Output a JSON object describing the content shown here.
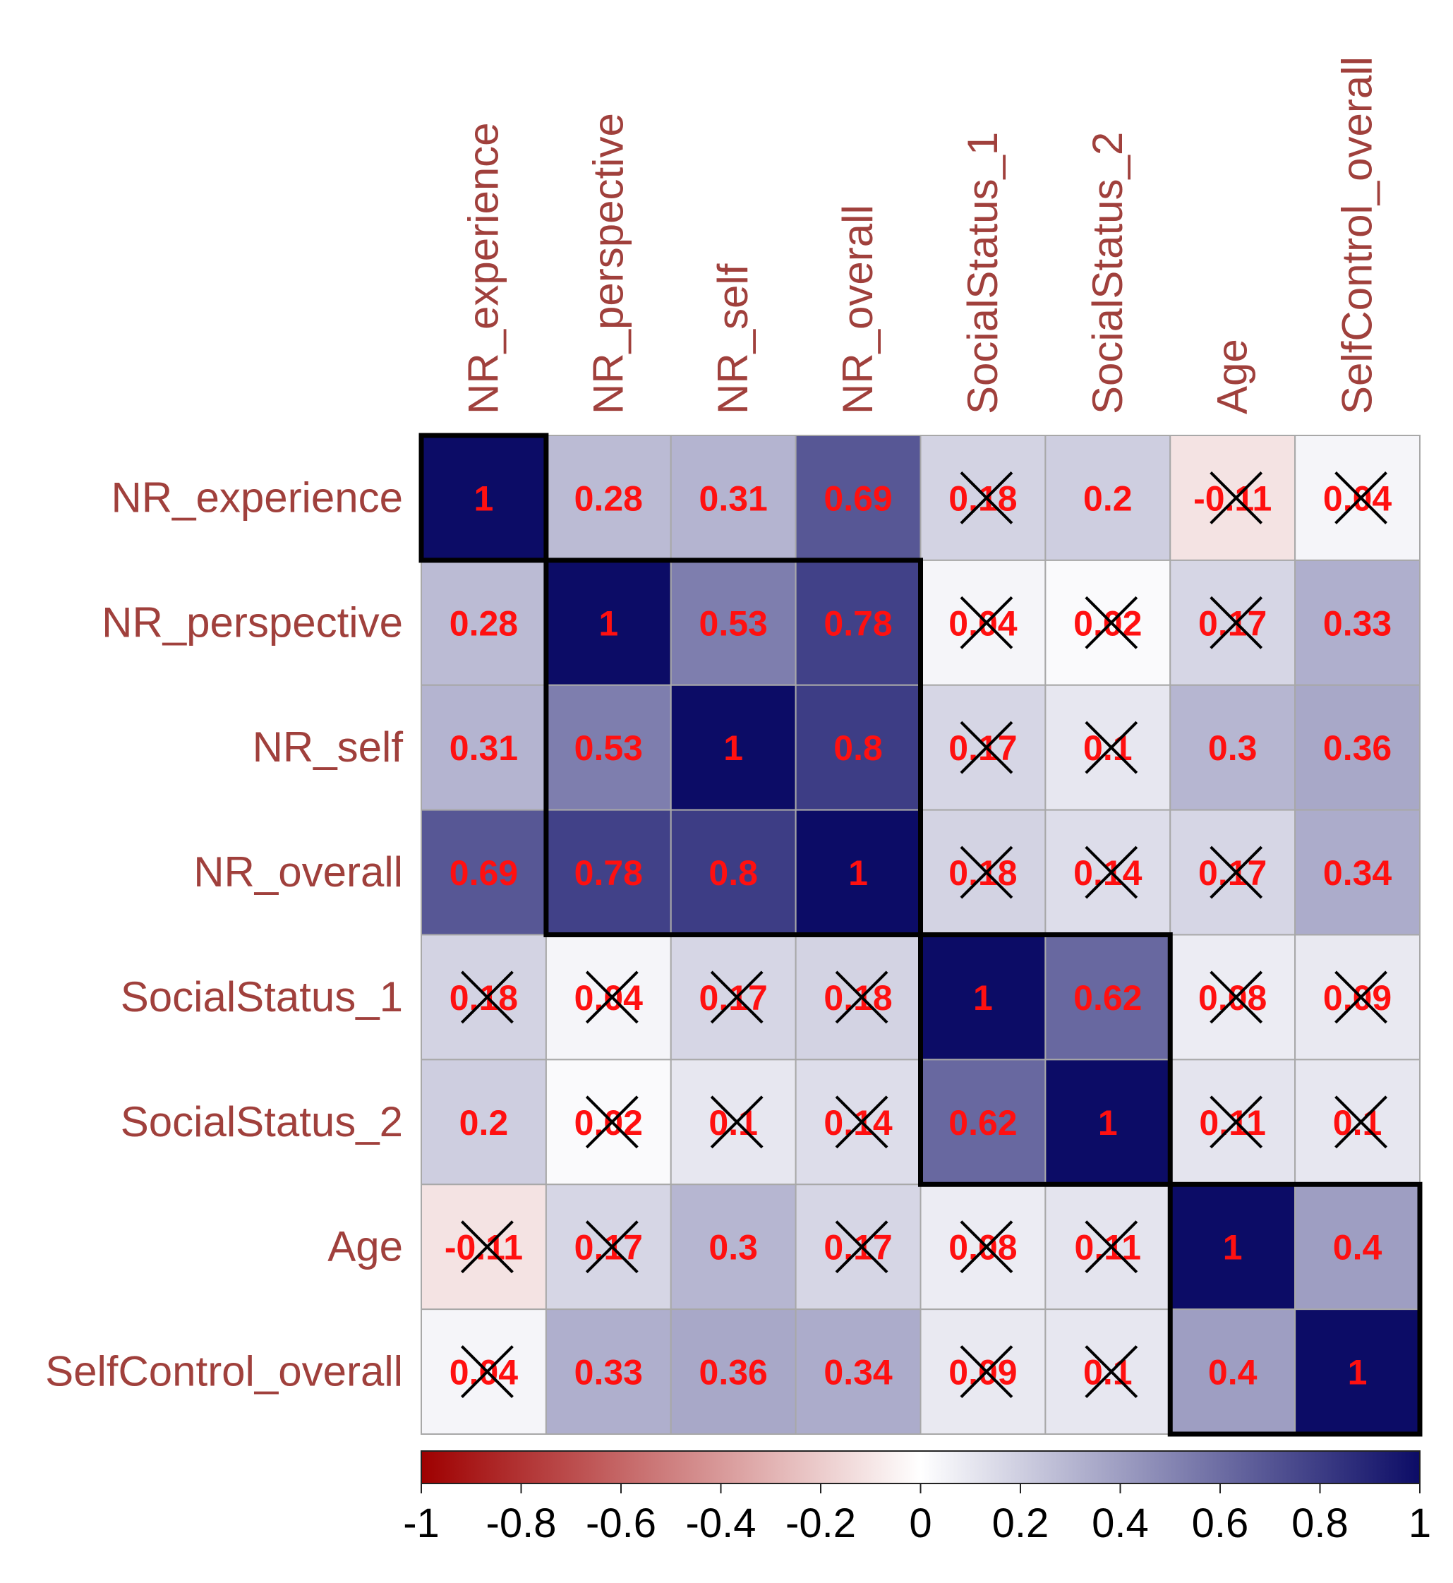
{
  "chart_data": {
    "type": "heatmap",
    "title": "",
    "variables": [
      "NR_experience",
      "NR_perspective",
      "NR_self",
      "NR_overall",
      "SocialStatus_1",
      "SocialStatus_2",
      "Age",
      "SelfControl_overall"
    ],
    "values": [
      [
        1,
        0.28,
        0.31,
        0.69,
        0.18,
        0.2,
        -0.11,
        0.04
      ],
      [
        0.28,
        1,
        0.53,
        0.78,
        0.04,
        0.02,
        0.17,
        0.33
      ],
      [
        0.31,
        0.53,
        1,
        0.8,
        0.17,
        0.1,
        0.3,
        0.36
      ],
      [
        0.69,
        0.78,
        0.8,
        1,
        0.18,
        0.14,
        0.17,
        0.34
      ],
      [
        0.18,
        0.04,
        0.17,
        0.18,
        1,
        0.62,
        0.08,
        0.09
      ],
      [
        0.2,
        0.02,
        0.1,
        0.14,
        0.62,
        1,
        0.11,
        0.1
      ],
      [
        -0.11,
        0.17,
        0.3,
        0.17,
        0.08,
        0.11,
        1,
        0.4
      ],
      [
        0.04,
        0.33,
        0.36,
        0.34,
        0.09,
        0.1,
        0.4,
        1
      ]
    ],
    "labels": [
      [
        "1",
        "0.28",
        "0.31",
        "0.69",
        "0.18",
        "0.2",
        "-0.11",
        "0.04"
      ],
      [
        "0.28",
        "1",
        "0.53",
        "0.78",
        "0.04",
        "0.02",
        "0.17",
        "0.33"
      ],
      [
        "0.31",
        "0.53",
        "1",
        "0.8",
        "0.17",
        "0.1",
        "0.3",
        "0.36"
      ],
      [
        "0.69",
        "0.78",
        "0.8",
        "1",
        "0.18",
        "0.14",
        "0.17",
        "0.34"
      ],
      [
        "0.18",
        "0.04",
        "0.17",
        "0.18",
        "1",
        "0.62",
        "0.08",
        "0.09"
      ],
      [
        "0.2",
        "0.02",
        "0.1",
        "0.14",
        "0.62",
        "1",
        "0.11",
        "0.1"
      ],
      [
        "-0.11",
        "0.17",
        "0.3",
        "0.17",
        "0.08",
        "0.11",
        "1",
        "0.4"
      ],
      [
        "0.04",
        "0.33",
        "0.36",
        "0.34",
        "0.09",
        "0.1",
        "0.4",
        "1"
      ]
    ],
    "not_significant": [
      [
        false,
        false,
        false,
        false,
        true,
        false,
        true,
        true
      ],
      [
        false,
        false,
        false,
        false,
        true,
        true,
        true,
        false
      ],
      [
        false,
        false,
        false,
        false,
        true,
        true,
        false,
        false
      ],
      [
        false,
        false,
        false,
        false,
        true,
        true,
        true,
        false
      ],
      [
        true,
        true,
        true,
        true,
        false,
        false,
        true,
        true
      ],
      [
        false,
        true,
        true,
        true,
        false,
        false,
        true,
        true
      ],
      [
        true,
        true,
        false,
        true,
        true,
        true,
        false,
        false
      ],
      [
        true,
        false,
        false,
        false,
        true,
        true,
        false,
        false
      ]
    ],
    "clusters": [
      {
        "start": 0,
        "end": 0
      },
      {
        "start": 1,
        "end": 3
      },
      {
        "start": 4,
        "end": 5
      },
      {
        "start": 6,
        "end": 7
      }
    ],
    "colorbar": {
      "range": [
        -1,
        1
      ],
      "ticks": [
        "-1",
        "-0.8",
        "-0.6",
        "-0.4",
        "-0.2",
        "0",
        "0.2",
        "0.4",
        "0.6",
        "0.8",
        "1"
      ],
      "neg_color": "#9e0000",
      "mid_color": "#ffffff",
      "pos_color": "#0c0c66"
    },
    "colors": {
      "label": "#a0403c",
      "value": "#ff1010",
      "grid": "#a8a8a8",
      "cross": "#000000",
      "cluster_border": "#000000"
    }
  }
}
